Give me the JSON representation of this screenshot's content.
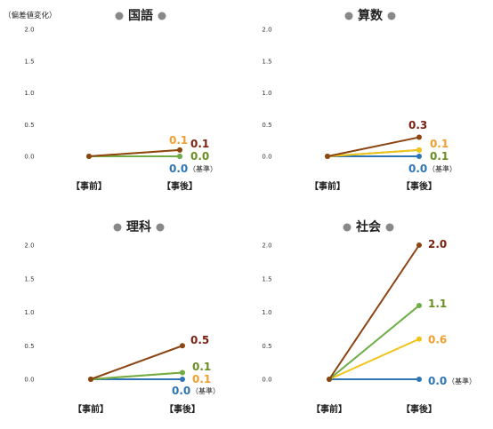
{
  "ylabel": "（偏差値変化）",
  "colors": {
    "brown": "#8B4513",
    "green": "#70AD47",
    "yellow": "#F0C419",
    "blue": "#2E75B6",
    "bullet": "#888888",
    "label_brown": "#7B1F10",
    "label_orange": "#F0A030",
    "label_green": "#6B8E23",
    "label_blue": "#2E75B6"
  },
  "baseline_note": "（基準）",
  "chart_data": [
    {
      "type": "line",
      "title": "国語",
      "categories": [
        "【事前】",
        "【事後】"
      ],
      "ylim": [
        0,
        2.0
      ],
      "yticks": [
        "0.0",
        "0.5",
        "1.0",
        "1.5",
        "2.0"
      ],
      "series": [
        {
          "color": "blue",
          "values": [
            0,
            0.0
          ],
          "label": "0.0",
          "label_color": "label_blue",
          "baseline": true
        },
        {
          "color": "green",
          "values": [
            0,
            0.0
          ],
          "label": "0.0",
          "label_color": "label_green"
        },
        {
          "color": "yellow",
          "values": [
            0,
            0.1
          ],
          "label": "0.1",
          "label_color": "label_orange"
        },
        {
          "color": "brown",
          "values": [
            0,
            0.1
          ],
          "label": "0.1",
          "label_color": "label_brown"
        }
      ]
    },
    {
      "type": "line",
      "title": "算数",
      "categories": [
        "【事前】",
        "【事後】"
      ],
      "ylim": [
        0,
        2.0
      ],
      "yticks": [
        "0.0",
        "0.5",
        "1.0",
        "1.5",
        "2.0"
      ],
      "series": [
        {
          "color": "blue",
          "values": [
            0,
            0.0
          ],
          "label": "0.0",
          "label_color": "label_blue",
          "baseline": true
        },
        {
          "color": "green",
          "values": [
            0,
            0.1
          ],
          "label": "0.1",
          "label_color": "label_green"
        },
        {
          "color": "yellow",
          "values": [
            0,
            0.1
          ],
          "label": "0.1",
          "label_color": "label_orange"
        },
        {
          "color": "brown",
          "values": [
            0,
            0.3
          ],
          "label": "0.3",
          "label_color": "label_brown"
        }
      ]
    },
    {
      "type": "line",
      "title": "理科",
      "categories": [
        "【事前】",
        "【事後】"
      ],
      "ylim": [
        0,
        2.0
      ],
      "yticks": [
        "0.0",
        "0.5",
        "1.0",
        "1.5",
        "2.0"
      ],
      "series": [
        {
          "color": "blue",
          "values": [
            0,
            0.0
          ],
          "label": "0.0",
          "label_color": "label_blue",
          "baseline": true
        },
        {
          "color": "yellow",
          "values": [
            0,
            0.1
          ],
          "label": "0.1",
          "label_color": "label_orange"
        },
        {
          "color": "green",
          "values": [
            0,
            0.1
          ],
          "label": "0.1",
          "label_color": "label_green"
        },
        {
          "color": "brown",
          "values": [
            0,
            0.5
          ],
          "label": "0.5",
          "label_color": "label_brown"
        }
      ]
    },
    {
      "type": "line",
      "title": "社会",
      "categories": [
        "【事前】",
        "【事後】"
      ],
      "ylim": [
        0,
        2.0
      ],
      "yticks": [
        "0.0",
        "0.5",
        "1.0",
        "1.5",
        "2.0"
      ],
      "series": [
        {
          "color": "blue",
          "values": [
            0,
            0.0
          ],
          "label": "0.0",
          "label_color": "label_blue",
          "baseline": true
        },
        {
          "color": "yellow",
          "values": [
            0,
            0.6
          ],
          "label": "0.6",
          "label_color": "label_orange"
        },
        {
          "color": "green",
          "values": [
            0,
            1.1
          ],
          "label": "1.1",
          "label_color": "label_green"
        },
        {
          "color": "brown",
          "values": [
            0,
            2.0
          ],
          "label": "2.0",
          "label_color": "label_brown"
        }
      ]
    }
  ]
}
